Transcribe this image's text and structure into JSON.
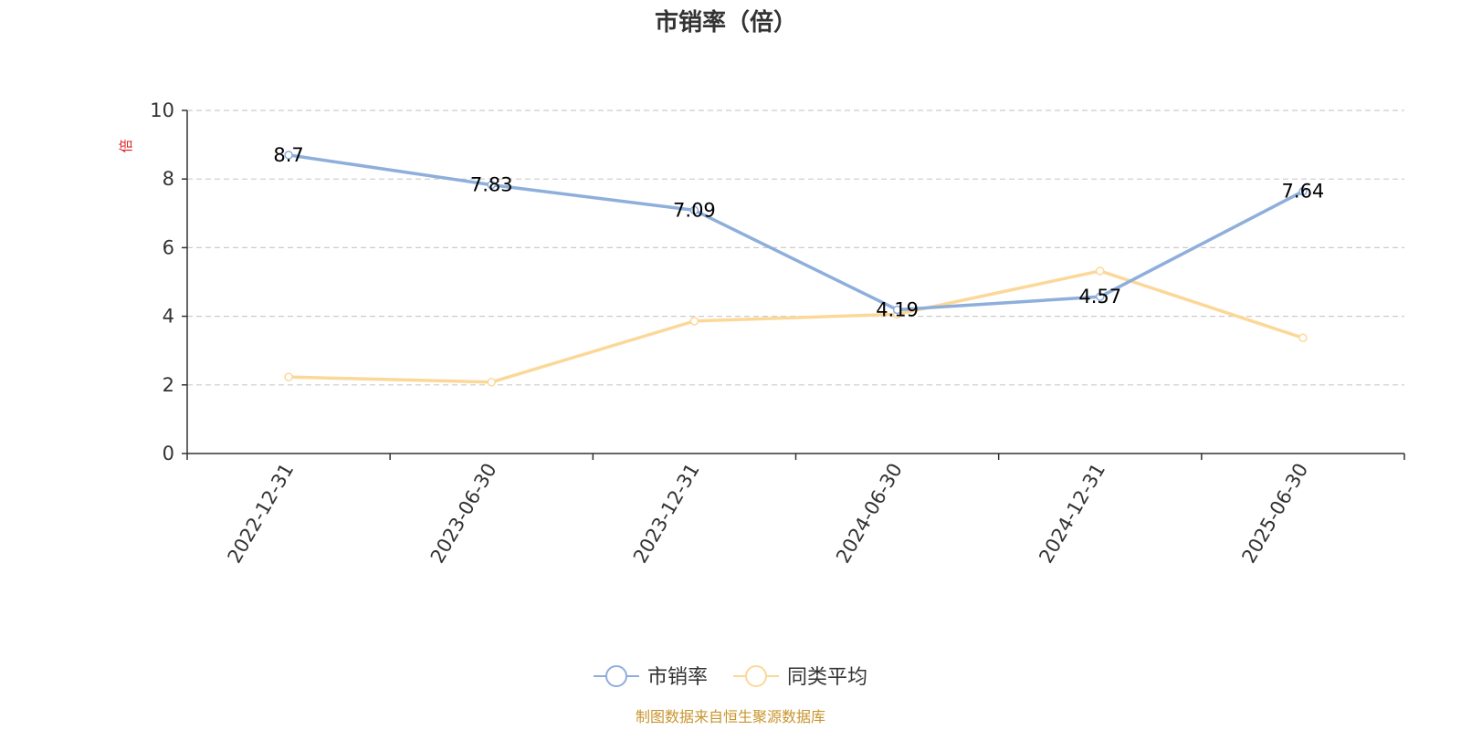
{
  "chart_data": {
    "type": "line",
    "title": "市销率（倍）",
    "ylabel": "倍",
    "xlabel": "",
    "categories": [
      "2022-12-31",
      "2023-06-30",
      "2023-12-31",
      "2024-06-30",
      "2024-12-31",
      "2025-06-30"
    ],
    "ylim": [
      0,
      10
    ],
    "yticks": [
      0,
      2,
      4,
      6,
      8,
      10
    ],
    "grid": true,
    "legend_position": "bottom",
    "series": [
      {
        "name": "市销率",
        "values": [
          8.7,
          7.83,
          7.09,
          4.19,
          4.57,
          7.64
        ],
        "color": "#8eaedb",
        "show_labels": true
      },
      {
        "name": "同类平均",
        "values": [
          2.23,
          2.08,
          3.86,
          4.06,
          5.32,
          3.37
        ],
        "color": "#fcd898",
        "show_labels": false
      }
    ],
    "source": "制图数据来自恒生聚源数据库"
  }
}
